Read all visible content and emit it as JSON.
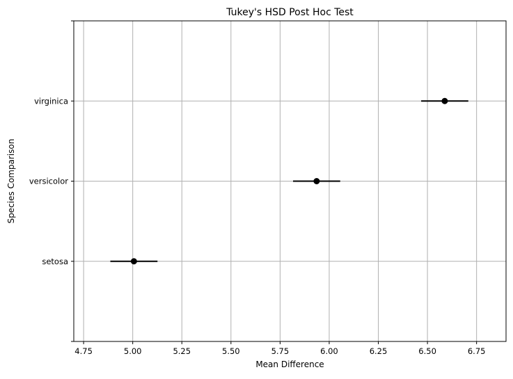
{
  "chart_data": {
    "type": "scatter",
    "title": "Tukey's HSD Post Hoc Test",
    "xlabel": "Mean Difference",
    "ylabel": "Species Comparison",
    "xlim": [
      4.7,
      6.9
    ],
    "x_ticks": [
      "4.75",
      "5.00",
      "5.25",
      "5.50",
      "5.75",
      "6.00",
      "6.25",
      "6.50",
      "6.75"
    ],
    "categories": [
      "setosa",
      "versicolor",
      "virginica"
    ],
    "points": [
      {
        "category": "setosa",
        "mean": 5.006,
        "lower": 4.886,
        "upper": 5.126
      },
      {
        "category": "versicolor",
        "mean": 5.936,
        "lower": 5.816,
        "upper": 6.056
      },
      {
        "category": "virginica",
        "mean": 6.588,
        "lower": 6.468,
        "upper": 6.708
      }
    ],
    "grid": true,
    "marker_color": "#000000",
    "grid_color": "#b0b0b0"
  }
}
